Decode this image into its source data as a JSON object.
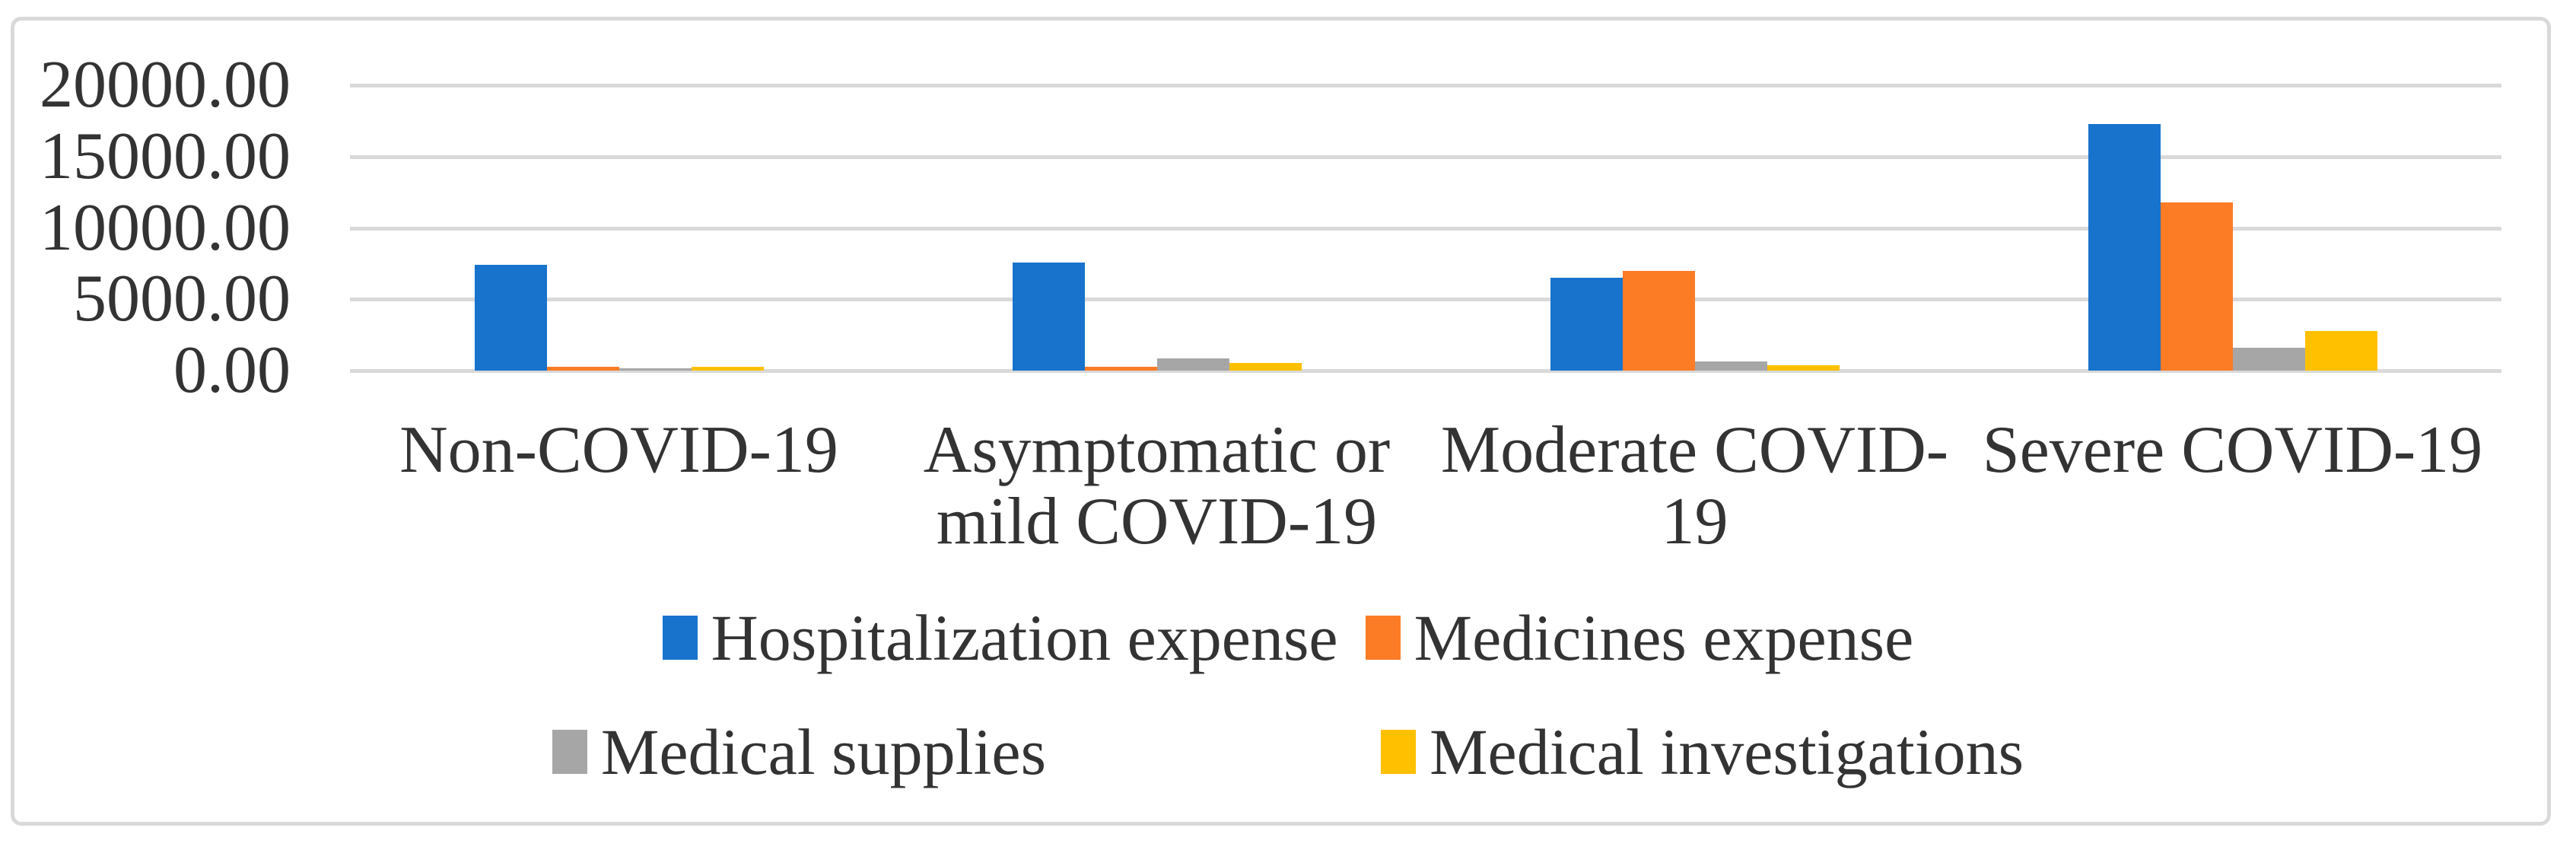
{
  "figure": {
    "background": "#FFFFFF",
    "border_color": "#D9D9D9",
    "gridline_color": "#D9D9D9",
    "text_color": "#333333"
  },
  "chart_data": {
    "type": "bar",
    "title": "",
    "xlabel": "",
    "ylabel": "",
    "categories": [
      "Non-COVID-19",
      "Asymptomatic or mild COVID-19",
      "Moderate COVID-19",
      "Severe COVID-19"
    ],
    "category_label_lines": [
      [
        "Non-COVID-19"
      ],
      [
        "Asymptomatic or",
        "mild COVID-19"
      ],
      [
        "Moderate COVID-",
        "19"
      ],
      [
        "Severe COVID-19"
      ]
    ],
    "series": [
      {
        "name": "Hospitalization expense",
        "color": "#1873CD",
        "values": [
          7400,
          7550,
          6500,
          17300
        ]
      },
      {
        "name": "Medicines expense",
        "color": "#FC7C26",
        "values": [
          250,
          260,
          7000,
          11800
        ]
      },
      {
        "name": "Medical supplies",
        "color": "#A6A6A6",
        "values": [
          160,
          850,
          650,
          1600
        ]
      },
      {
        "name": "Medical investigations",
        "color": "#FFC000",
        "values": [
          250,
          530,
          350,
          2760
        ]
      }
    ],
    "ylim": [
      0,
      20000
    ],
    "ytick_interval": 5000,
    "ytick_labels": [
      "20000.00",
      "15000.00",
      "10000.00",
      "5000.00",
      "0.00"
    ],
    "grid": true,
    "legend_position": "bottom",
    "legend_rows": [
      [
        "Hospitalization expense",
        "Medicines expense"
      ],
      [
        "Medical supplies",
        "Medical investigations"
      ]
    ]
  }
}
